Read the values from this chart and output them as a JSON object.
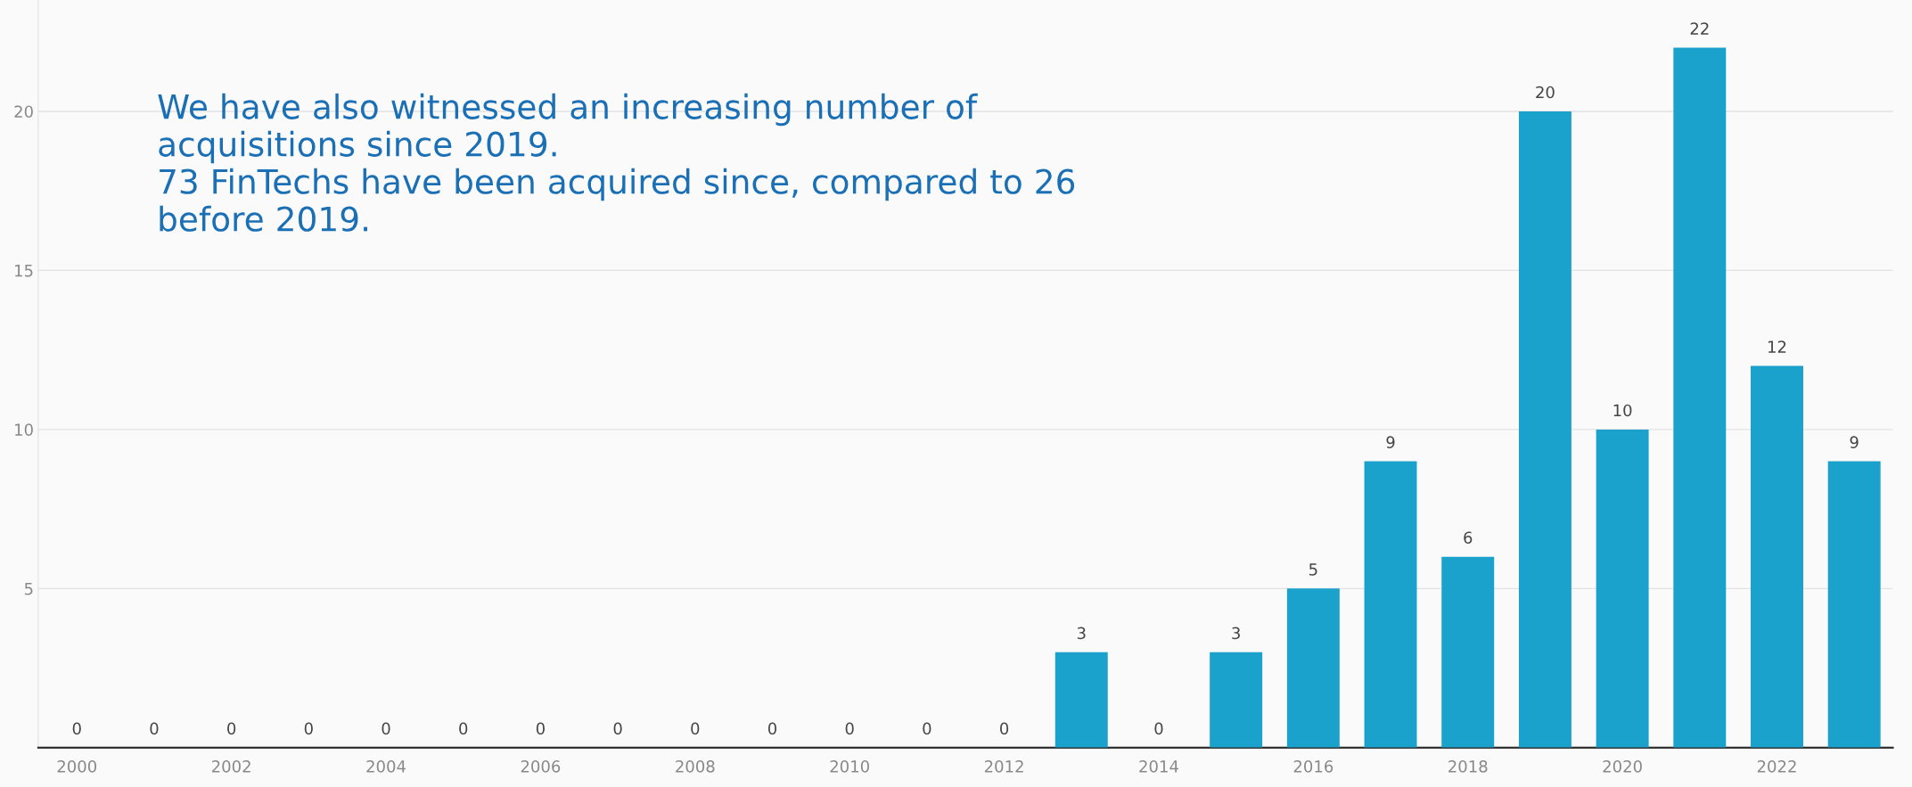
{
  "chart_data": {
    "type": "bar",
    "x": [
      2000,
      2001,
      2002,
      2003,
      2004,
      2005,
      2006,
      2007,
      2008,
      2009,
      2010,
      2011,
      2012,
      2013,
      2014,
      2015,
      2016,
      2017,
      2018,
      2019,
      2020,
      2021,
      2022,
      2023
    ],
    "values": [
      0,
      0,
      0,
      0,
      0,
      0,
      0,
      0,
      0,
      0,
      0,
      0,
      0,
      3,
      0,
      3,
      5,
      9,
      6,
      20,
      10,
      22,
      12,
      9
    ],
    "color": "#1aa1cc",
    "xlim": [
      1999.5,
      2023.5
    ],
    "xticks": [
      2000,
      2002,
      2004,
      2006,
      2008,
      2010,
      2012,
      2014,
      2016,
      2018,
      2020,
      2022
    ],
    "ylim": [
      0,
      23.5
    ],
    "yticks": [
      5,
      10,
      15,
      20
    ],
    "grid": "y",
    "data_labels": true,
    "annotations": [
      "We have also witnessed an increasing number of\nacquisitions since 2019.\n73 FinTechs have been acquired since, compared to 26\nbefore 2019."
    ]
  }
}
